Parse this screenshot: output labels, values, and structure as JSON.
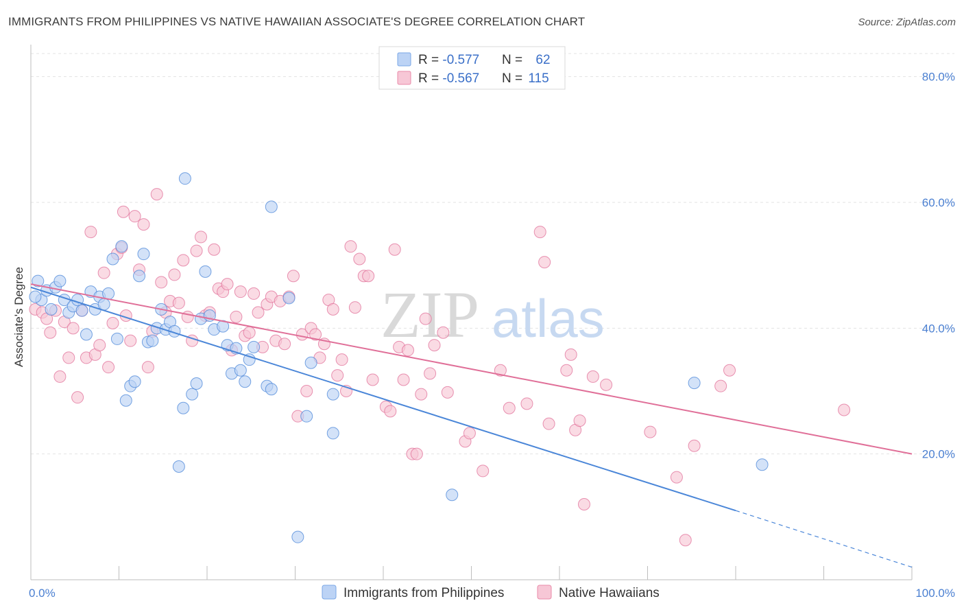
{
  "title": "IMMIGRANTS FROM PHILIPPINES VS NATIVE HAWAIIAN ASSOCIATE'S DEGREE CORRELATION CHART",
  "source": "Source: ZipAtlas.com",
  "watermark": {
    "zip": "ZIP",
    "atlas": "atlas"
  },
  "legend_top": [
    {
      "r_label": "R = ",
      "r_value": "-0.577",
      "n_label": "N = ",
      "n_value": "62",
      "color": "#7aa7e6",
      "fill": "#bcd3f5"
    },
    {
      "r_label": "R = ",
      "r_value": "-0.567",
      "n_label": "N = ",
      "n_value": "115",
      "color": "#e88aa8",
      "fill": "#f7c7d6"
    }
  ],
  "legend_bottom": [
    {
      "label": "Immigrants from Philippines",
      "fill": "#bcd3f5",
      "color": "#7aa7e6"
    },
    {
      "label": "Native Hawaiians",
      "fill": "#f7c7d6",
      "color": "#e88aa8"
    }
  ],
  "chart_data": {
    "type": "scatter",
    "title": "IMMIGRANTS FROM PHILIPPINES VS NATIVE HAWAIIAN ASSOCIATE'S DEGREE CORRELATION CHART",
    "xlabel": "",
    "ylabel": "Associate's Degree",
    "xlim": [
      0,
      100
    ],
    "ylim": [
      0,
      84
    ],
    "x_tick_labels": [
      "0.0%",
      "100.0%"
    ],
    "y_ticks": [
      20,
      40,
      60,
      80
    ],
    "y_tick_labels": [
      "20.0%",
      "40.0%",
      "60.0%",
      "80.0%"
    ],
    "grid": true,
    "series": [
      {
        "name": "Immigrants from Philippines",
        "color": "#4a86d8",
        "fill": "#bcd3f5",
        "trend": {
          "x0": 0,
          "y0": 46.5,
          "x1": 80,
          "y1": 11.0,
          "dash_to_x": 100,
          "dash_to_y": 2.0
        },
        "points": [
          [
            0.8,
            47.5
          ],
          [
            1.2,
            44.5
          ],
          [
            1.8,
            46.0
          ],
          [
            2.3,
            43.0
          ],
          [
            2.8,
            46.5
          ],
          [
            3.3,
            47.5
          ],
          [
            3.8,
            44.5
          ],
          [
            4.3,
            42.5
          ],
          [
            4.8,
            43.5
          ],
          [
            5.3,
            44.5
          ],
          [
            5.8,
            42.8
          ],
          [
            6.3,
            39.0
          ],
          [
            6.8,
            45.8
          ],
          [
            7.3,
            43.0
          ],
          [
            7.8,
            45.0
          ],
          [
            8.3,
            43.8
          ],
          [
            8.8,
            45.5
          ],
          [
            9.3,
            51.0
          ],
          [
            9.8,
            38.3
          ],
          [
            10.3,
            53.0
          ],
          [
            10.8,
            28.5
          ],
          [
            11.3,
            30.8
          ],
          [
            11.8,
            31.5
          ],
          [
            12.3,
            48.3
          ],
          [
            12.8,
            51.8
          ],
          [
            13.3,
            37.8
          ],
          [
            13.8,
            38.0
          ],
          [
            14.3,
            40.0
          ],
          [
            14.8,
            43.0
          ],
          [
            15.3,
            39.8
          ],
          [
            15.8,
            41.0
          ],
          [
            16.3,
            39.5
          ],
          [
            16.8,
            18.0
          ],
          [
            17.3,
            27.3
          ],
          [
            17.5,
            63.8
          ],
          [
            18.3,
            29.5
          ],
          [
            18.8,
            31.2
          ],
          [
            19.3,
            41.5
          ],
          [
            19.8,
            49.0
          ],
          [
            20.3,
            42.0
          ],
          [
            20.8,
            39.8
          ],
          [
            21.8,
            40.3
          ],
          [
            22.3,
            37.3
          ],
          [
            22.8,
            32.8
          ],
          [
            23.3,
            36.8
          ],
          [
            23.8,
            33.3
          ],
          [
            24.3,
            31.5
          ],
          [
            25.3,
            37.0
          ],
          [
            24.8,
            35.0
          ],
          [
            26.8,
            30.8
          ],
          [
            27.3,
            30.3
          ],
          [
            27.3,
            59.3
          ],
          [
            29.3,
            44.8
          ],
          [
            30.3,
            6.8
          ],
          [
            31.3,
            26.0
          ],
          [
            31.8,
            34.5
          ],
          [
            34.3,
            29.5
          ],
          [
            34.3,
            23.3
          ],
          [
            47.8,
            13.5
          ],
          [
            75.3,
            31.3
          ],
          [
            83.0,
            18.3
          ],
          [
            0.5,
            45.0
          ]
        ]
      },
      {
        "name": "Native Hawaiians",
        "color": "#e06f98",
        "fill": "#f7c7d6",
        "trend": {
          "x0": 0,
          "y0": 47.0,
          "x1": 100,
          "y1": 20.0
        },
        "points": [
          [
            0.5,
            43.0
          ],
          [
            1.3,
            42.5
          ],
          [
            1.8,
            41.5
          ],
          [
            2.2,
            39.3
          ],
          [
            2.8,
            42.8
          ],
          [
            3.3,
            32.3
          ],
          [
            3.8,
            41.0
          ],
          [
            4.3,
            35.3
          ],
          [
            4.8,
            40.0
          ],
          [
            5.3,
            29.0
          ],
          [
            5.8,
            42.8
          ],
          [
            6.3,
            35.3
          ],
          [
            6.8,
            55.3
          ],
          [
            7.3,
            35.8
          ],
          [
            7.8,
            37.3
          ],
          [
            8.3,
            48.8
          ],
          [
            8.8,
            33.8
          ],
          [
            9.3,
            40.8
          ],
          [
            9.8,
            51.8
          ],
          [
            10.3,
            52.8
          ],
          [
            10.5,
            58.5
          ],
          [
            10.8,
            42.0
          ],
          [
            11.3,
            38.0
          ],
          [
            11.8,
            57.8
          ],
          [
            12.3,
            49.3
          ],
          [
            12.8,
            56.5
          ],
          [
            13.3,
            33.8
          ],
          [
            13.8,
            39.5
          ],
          [
            14.3,
            61.3
          ],
          [
            14.8,
            47.3
          ],
          [
            15.3,
            42.5
          ],
          [
            15.8,
            44.3
          ],
          [
            16.3,
            48.5
          ],
          [
            16.8,
            44.0
          ],
          [
            17.3,
            50.8
          ],
          [
            17.8,
            41.8
          ],
          [
            18.3,
            38.0
          ],
          [
            18.8,
            52.3
          ],
          [
            19.3,
            54.5
          ],
          [
            19.8,
            42.0
          ],
          [
            20.3,
            42.5
          ],
          [
            20.8,
            52.5
          ],
          [
            21.3,
            46.3
          ],
          [
            21.8,
            45.8
          ],
          [
            22.3,
            47.0
          ],
          [
            22.8,
            36.5
          ],
          [
            23.3,
            41.8
          ],
          [
            23.8,
            45.8
          ],
          [
            24.3,
            38.8
          ],
          [
            24.8,
            39.3
          ],
          [
            25.3,
            45.5
          ],
          [
            25.8,
            42.5
          ],
          [
            26.3,
            37.0
          ],
          [
            26.8,
            43.8
          ],
          [
            27.3,
            45.0
          ],
          [
            27.8,
            38.0
          ],
          [
            28.3,
            44.3
          ],
          [
            28.8,
            37.5
          ],
          [
            29.3,
            45.0
          ],
          [
            29.8,
            48.3
          ],
          [
            30.3,
            26.0
          ],
          [
            30.8,
            39.0
          ],
          [
            31.3,
            30.0
          ],
          [
            31.8,
            40.0
          ],
          [
            32.3,
            39.0
          ],
          [
            32.8,
            35.3
          ],
          [
            33.3,
            37.5
          ],
          [
            33.8,
            44.5
          ],
          [
            34.3,
            43.0
          ],
          [
            34.8,
            32.5
          ],
          [
            35.3,
            35.0
          ],
          [
            35.8,
            30.0
          ],
          [
            36.3,
            53.0
          ],
          [
            36.8,
            43.3
          ],
          [
            37.3,
            51.0
          ],
          [
            37.8,
            48.3
          ],
          [
            38.3,
            48.3
          ],
          [
            38.8,
            31.8
          ],
          [
            40.3,
            27.5
          ],
          [
            40.8,
            26.8
          ],
          [
            41.3,
            52.5
          ],
          [
            41.8,
            37.0
          ],
          [
            42.3,
            31.8
          ],
          [
            42.8,
            36.5
          ],
          [
            43.3,
            20.0
          ],
          [
            43.8,
            20.0
          ],
          [
            44.3,
            29.5
          ],
          [
            44.8,
            41.5
          ],
          [
            45.3,
            32.8
          ],
          [
            45.8,
            37.3
          ],
          [
            46.8,
            39.3
          ],
          [
            47.3,
            29.8
          ],
          [
            49.3,
            22.0
          ],
          [
            49.8,
            23.3
          ],
          [
            51.3,
            17.3
          ],
          [
            53.3,
            33.3
          ],
          [
            54.3,
            27.3
          ],
          [
            56.3,
            28.0
          ],
          [
            57.8,
            55.3
          ],
          [
            58.3,
            50.5
          ],
          [
            58.8,
            24.8
          ],
          [
            60.8,
            33.3
          ],
          [
            61.3,
            35.8
          ],
          [
            61.8,
            23.8
          ],
          [
            62.3,
            25.3
          ],
          [
            62.8,
            12.0
          ],
          [
            63.8,
            32.3
          ],
          [
            65.3,
            31.0
          ],
          [
            70.3,
            23.5
          ],
          [
            73.3,
            16.3
          ],
          [
            74.3,
            6.3
          ],
          [
            75.3,
            21.3
          ],
          [
            78.3,
            30.8
          ],
          [
            79.3,
            33.3
          ],
          [
            92.3,
            27.0
          ]
        ]
      }
    ]
  }
}
